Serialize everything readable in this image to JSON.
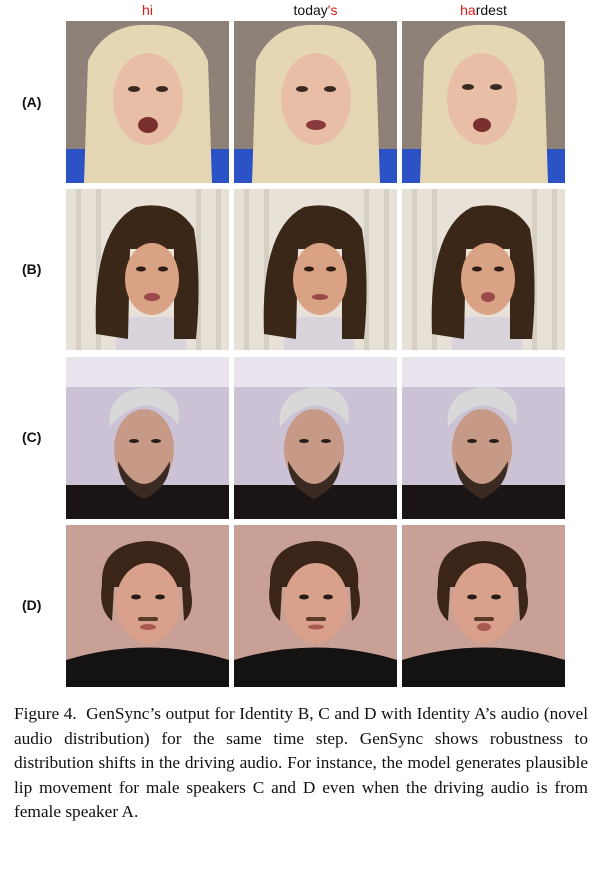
{
  "header_words": [
    {
      "red": "hi",
      "black_before": "",
      "black_after": ""
    },
    {
      "red": "'s",
      "black_before": "today",
      "black_after": ""
    },
    {
      "red": "ha",
      "black_before": "",
      "black_after": "rdest"
    }
  ],
  "rows": [
    {
      "label": "(A)"
    },
    {
      "label": "(B)"
    },
    {
      "label": "(C)"
    },
    {
      "label": "(D)"
    }
  ],
  "caption": {
    "label": "Figure 4.",
    "text": "GenSync’s output for Identity B, C and D with Identity A’s audio (novel audio distribution) for the same time step. GenSync shows robustness to distribution shifts in the driving audio. For instance, the model generates plausible lip movement for male speakers C and D even when the driving audio is from female speaker A."
  },
  "colors": {
    "highlight": "#e01818"
  }
}
